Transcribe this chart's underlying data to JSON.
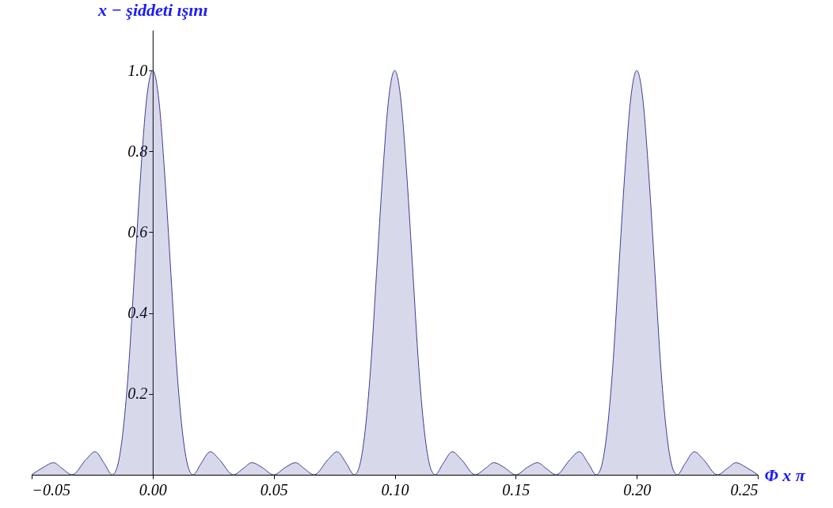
{
  "chart_data": {
    "type": "area",
    "xlabel": "Φ x π",
    "ylabel": "x − şiddeti ışını",
    "xlim": [
      -0.05,
      0.25
    ],
    "ylim": [
      0,
      1.1
    ],
    "xticks": [
      {
        "value": -0.05,
        "label": "−0.05"
      },
      {
        "value": 0,
        "label": "0.00"
      },
      0.05,
      {
        "value": 0.1,
        "label": "0.10"
      },
      0.15,
      {
        "value": 0.2,
        "label": "0.20"
      },
      0.25
    ],
    "yticks": [
      0.2,
      0.4,
      0.6,
      0.8,
      {
        "value": 1,
        "label": "1.0"
      }
    ],
    "grid": false,
    "series": [
      {
        "color": "#3d3d99",
        "x": [
          -0.05,
          -0.045,
          -0.041,
          -0.0375,
          -0.0333,
          -0.0275,
          -0.0238,
          -0.02,
          -0.0167,
          -0.015,
          -0.0125,
          -0.01,
          -0.0075,
          -0.005,
          -0.0025,
          0,
          0.0025,
          0.005,
          0.0075,
          0.01,
          0.0125,
          0.015,
          0.0167,
          0.02,
          0.0238,
          0.0275,
          0.0333,
          0.0375,
          0.041,
          0.045,
          0.05,
          0.055,
          0.059,
          0.0625,
          0.0667,
          0.0725,
          0.0762,
          0.08,
          0.0833,
          0.085,
          0.0875,
          0.09,
          0.0925,
          0.095,
          0.0975,
          0.1,
          0.1025,
          0.105,
          0.1075,
          0.11,
          0.1125,
          0.115,
          0.1167,
          0.12,
          0.1238,
          0.1275,
          0.1333,
          0.1375,
          0.141,
          0.145,
          0.15,
          0.155,
          0.159,
          0.1625,
          0.1667,
          0.1725,
          0.1762,
          0.18,
          0.1833,
          0.185,
          0.1875,
          0.19,
          0.1925,
          0.195,
          0.1975,
          0.2,
          0.2025,
          0.205,
          0.2075,
          0.21,
          0.2125,
          0.215,
          0.2167,
          0.22,
          0.2238,
          0.2275,
          0.2333,
          0.2375,
          0.241,
          0.245,
          0.25
        ],
        "values": [
          0,
          0.019,
          0.03,
          0.016,
          0,
          0.038,
          0.057,
          0.028,
          0,
          0.013,
          0.095,
          0.26,
          0.5,
          0.74,
          0.93,
          1,
          0.93,
          0.74,
          0.5,
          0.26,
          0.095,
          0.013,
          0,
          0.028,
          0.057,
          0.038,
          0,
          0.016,
          0.03,
          0.019,
          0,
          0.019,
          0.03,
          0.016,
          0,
          0.038,
          0.057,
          0.028,
          0,
          0.013,
          0.095,
          0.26,
          0.5,
          0.74,
          0.93,
          1,
          0.93,
          0.74,
          0.5,
          0.26,
          0.095,
          0.013,
          0,
          0.028,
          0.057,
          0.038,
          0,
          0.016,
          0.03,
          0.019,
          0,
          0.019,
          0.03,
          0.016,
          0,
          0.038,
          0.057,
          0.028,
          0,
          0.013,
          0.095,
          0.26,
          0.5,
          0.74,
          0.93,
          1,
          0.93,
          0.74,
          0.5,
          0.26,
          0.095,
          0.013,
          0,
          0.028,
          0.057,
          0.038,
          0,
          0.016,
          0.03,
          0.019,
          0
        ]
      }
    ]
  }
}
